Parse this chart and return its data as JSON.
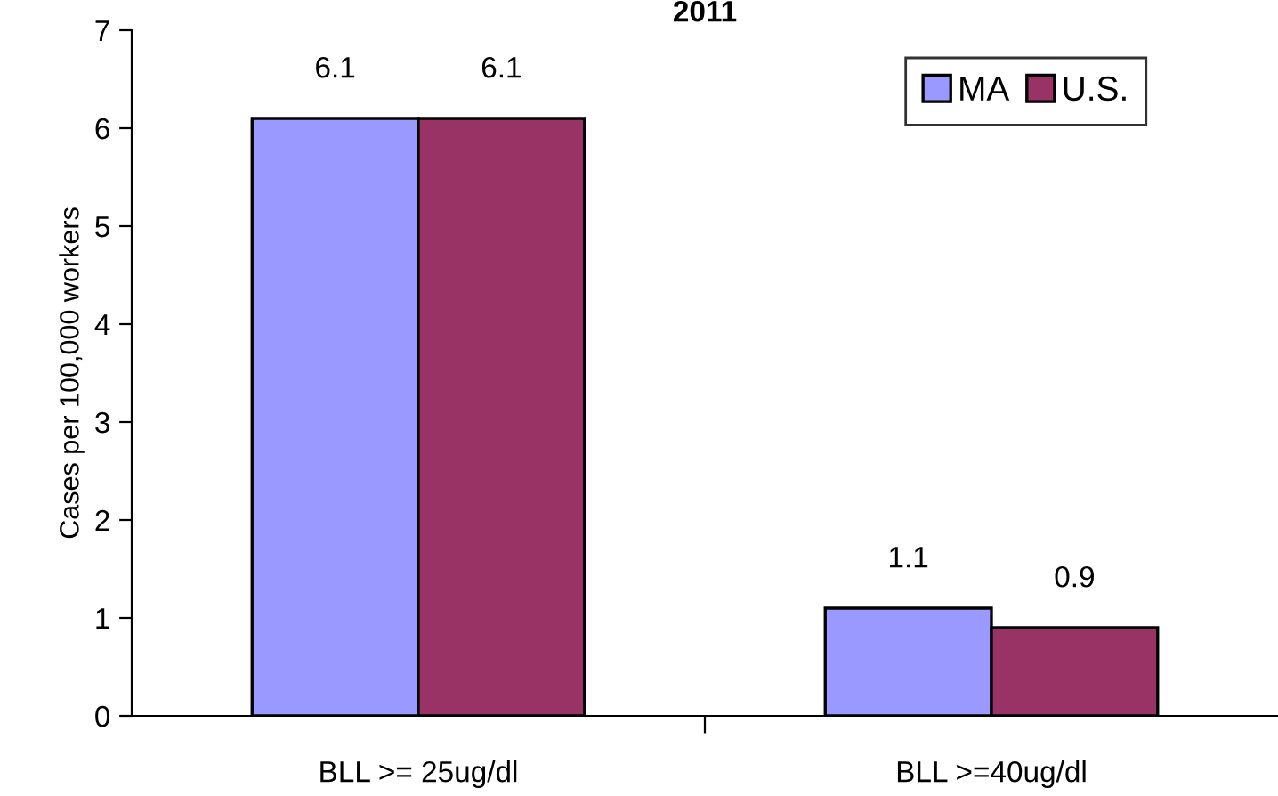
{
  "chart_data": {
    "type": "bar",
    "title": "2011",
    "ylabel": "Cases per 100,000 workers",
    "categories": [
      "BLL >= 25ug/dl",
      "BLL >=40ug/dl"
    ],
    "series": [
      {
        "name": "MA",
        "color": "#9999ff",
        "values": [
          6.1,
          1.1
        ]
      },
      {
        "name": "U.S.",
        "color": "#993366",
        "values": [
          6.1,
          0.9
        ]
      }
    ],
    "ylim": [
      0,
      7
    ],
    "yticks": [
      0,
      1,
      2,
      3,
      4,
      5,
      6,
      7
    ],
    "data_labels": true,
    "grid": false,
    "legend": "top right"
  }
}
